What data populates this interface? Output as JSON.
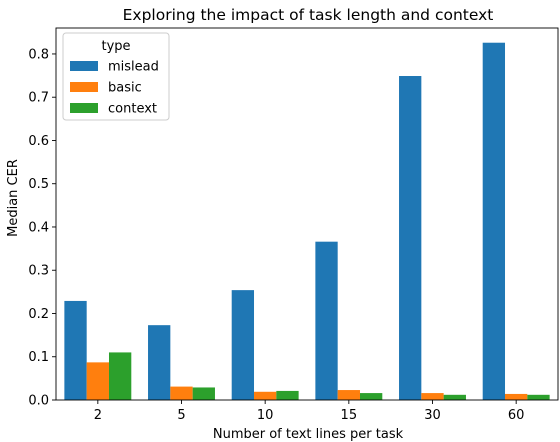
{
  "chart_data": {
    "type": "bar",
    "title": "Exploring the impact of task length and context",
    "xlabel": "Number of text lines per task",
    "ylabel": "Median CER",
    "categories": [
      "2",
      "5",
      "10",
      "15",
      "30",
      "60"
    ],
    "ylim": [
      0,
      0.86
    ],
    "yticks": [
      "0.0",
      "0.1",
      "0.2",
      "0.3",
      "0.4",
      "0.5",
      "0.6",
      "0.7",
      "0.8"
    ],
    "legend": {
      "title": "type",
      "position": "top-left"
    },
    "series": [
      {
        "name": "mislead",
        "color": "#1f77b4",
        "values": [
          0.229,
          0.173,
          0.254,
          0.366,
          0.749,
          0.826
        ]
      },
      {
        "name": "basic",
        "color": "#ff7f0e",
        "values": [
          0.087,
          0.031,
          0.019,
          0.023,
          0.016,
          0.014
        ]
      },
      {
        "name": "context",
        "color": "#2ca02c",
        "values": [
          0.11,
          0.029,
          0.021,
          0.016,
          0.012,
          0.012
        ]
      }
    ]
  }
}
